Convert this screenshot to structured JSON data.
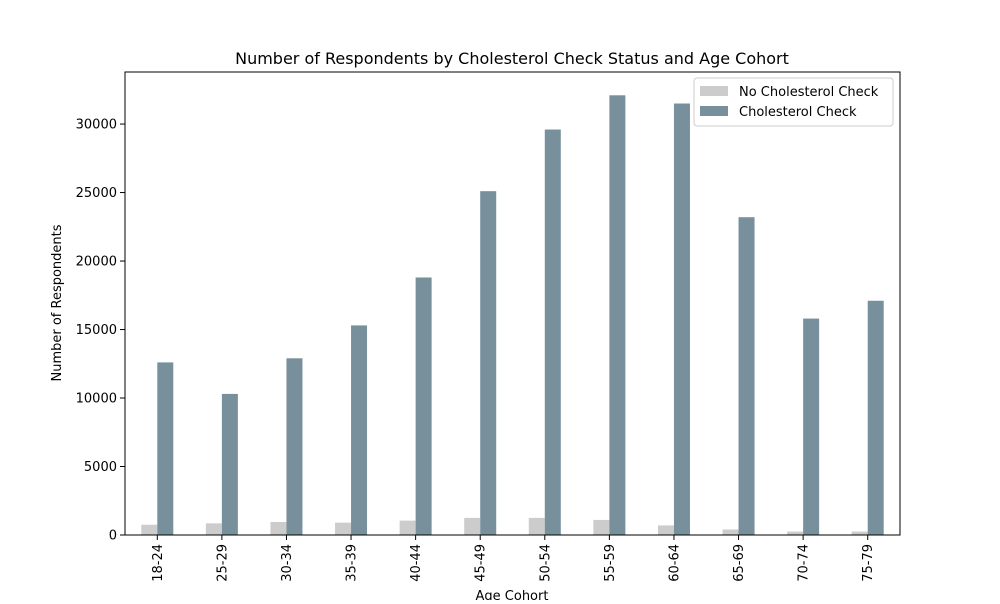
{
  "chart_data": {
    "type": "bar",
    "title": "Number of Respondents by Cholesterol Check Status and Age Cohort",
    "xlabel": "Age Cohort",
    "ylabel": "Number of Respondents",
    "categories": [
      "18-24",
      "25-29",
      "30-34",
      "35-39",
      "40-44",
      "45-49",
      "50-54",
      "55-59",
      "60-64",
      "65-69",
      "70-74",
      "75-79"
    ],
    "series": [
      {
        "name": "No Cholesterol Check",
        "color": "#cccccc",
        "values": [
          750,
          850,
          950,
          900,
          1050,
          1250,
          1250,
          1100,
          700,
          400,
          250,
          250
        ]
      },
      {
        "name": "Cholesterol Check",
        "color": "#78909c",
        "values": [
          12600,
          10300,
          12900,
          15300,
          18800,
          25100,
          29600,
          32100,
          31500,
          23200,
          15800,
          17100
        ]
      }
    ],
    "ylim": [
      0,
      33800
    ],
    "yticks": [
      0,
      5000,
      10000,
      15000,
      20000,
      25000,
      30000
    ],
    "ytick_labels": [
      "0",
      "5000",
      "10000",
      "15000",
      "20000",
      "25000",
      "30000"
    ],
    "legend_position": "top-right",
    "grid": false
  }
}
